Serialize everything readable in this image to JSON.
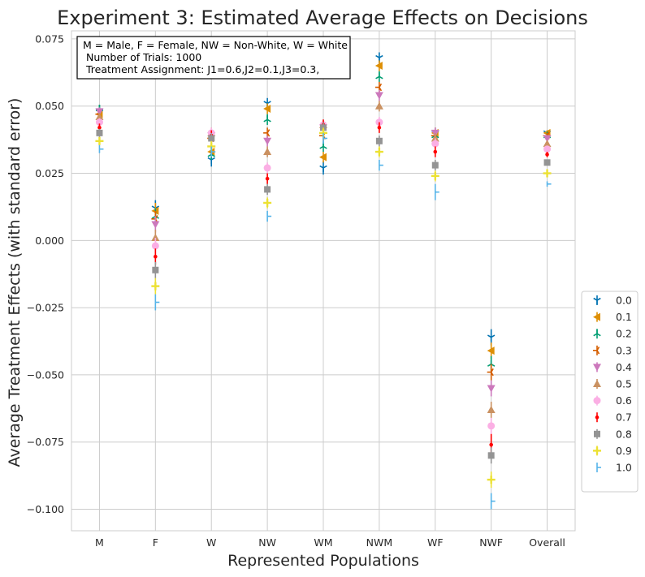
{
  "chart_data": {
    "type": "scatter",
    "title": "Experiment 3: Estimated Average Effects on Decisions",
    "xlabel": "Represented Populations",
    "ylabel": "Average Treatment Effects (with standard error)",
    "categories": [
      "M",
      "F",
      "W",
      "NW",
      "WM",
      "NWM",
      "WF",
      "NWF",
      "Overall"
    ],
    "ylim": [
      -0.108,
      0.078
    ],
    "yticks": [
      -0.1,
      -0.075,
      -0.05,
      -0.025,
      0.0,
      0.025,
      0.05,
      0.075
    ],
    "ytick_labels": [
      "−0.100",
      "−0.075",
      "−0.050",
      "−0.025",
      "0.000",
      "0.025",
      "0.050",
      "0.075"
    ],
    "grid": true,
    "annotation": [
      "M = Male, F = Female, NW = Non-White, W = White",
      " Number of Trials: 1000",
      " Treatment Assignment: J1=0.6,J2=0.1,J3=0.3,"
    ],
    "legend_position": "right-center",
    "series": [
      {
        "name": "0.0",
        "color": "#0173b2",
        "marker": "tri_down",
        "values": [
          0.048,
          0.012,
          0.03,
          0.051,
          0.027,
          0.068,
          0.04,
          -0.036,
          0.04
        ],
        "errors": [
          0.0015,
          0.003,
          0.0025,
          0.002,
          0.0025,
          0.002,
          0.002,
          0.003,
          0.001
        ]
      },
      {
        "name": "0.1",
        "color": "#de8f05",
        "marker": "triangle_left",
        "values": [
          0.047,
          0.011,
          0.033,
          0.049,
          0.031,
          0.065,
          0.04,
          -0.041,
          0.04
        ],
        "errors": [
          0.0015,
          0.003,
          0.002,
          0.002,
          0.002,
          0.002,
          0.002,
          0.003,
          0.001
        ]
      },
      {
        "name": "0.2",
        "color": "#029e73",
        "marker": "tri_up",
        "values": [
          0.049,
          0.009,
          0.032,
          0.045,
          0.035,
          0.061,
          0.039,
          -0.046,
          0.039
        ],
        "errors": [
          0.0015,
          0.003,
          0.002,
          0.002,
          0.002,
          0.002,
          0.002,
          0.003,
          0.001
        ]
      },
      {
        "name": "0.3",
        "color": "#d55e00",
        "marker": "tri_left",
        "values": [
          0.047,
          0.008,
          0.038,
          0.04,
          0.039,
          0.057,
          0.039,
          -0.049,
          0.039
        ],
        "errors": [
          0.0015,
          0.003,
          0.002,
          0.002,
          0.002,
          0.002,
          0.002,
          0.003,
          0.001
        ]
      },
      {
        "name": "0.4",
        "color": "#cc78bc",
        "marker": "triangle_down",
        "values": [
          0.048,
          0.006,
          0.039,
          0.037,
          0.042,
          0.054,
          0.04,
          -0.055,
          0.038
        ],
        "errors": [
          0.0015,
          0.003,
          0.002,
          0.002,
          0.002,
          0.002,
          0.002,
          0.003,
          0.001
        ]
      },
      {
        "name": "0.5",
        "color": "#ca9161",
        "marker": "triangle_up",
        "values": [
          0.046,
          0.001,
          0.04,
          0.033,
          0.043,
          0.05,
          0.038,
          -0.063,
          0.036
        ],
        "errors": [
          0.0015,
          0.003,
          0.002,
          0.002,
          0.002,
          0.002,
          0.002,
          0.003,
          0.001
        ]
      },
      {
        "name": "0.6",
        "color": "#fbafe4",
        "marker": "circle",
        "values": [
          0.044,
          -0.002,
          0.04,
          0.027,
          0.043,
          0.044,
          0.036,
          -0.069,
          0.034
        ],
        "errors": [
          0.0015,
          0.003,
          0.002,
          0.002,
          0.002,
          0.002,
          0.002,
          0.003,
          0.001
        ]
      },
      {
        "name": "0.7",
        "color": "#ff0000",
        "marker": "point",
        "values": [
          0.042,
          -0.006,
          0.039,
          0.023,
          0.043,
          0.042,
          0.033,
          -0.076,
          0.032
        ],
        "errors": [
          0.0015,
          0.003,
          0.002,
          0.002,
          0.002,
          0.002,
          0.002,
          0.004,
          0.001
        ]
      },
      {
        "name": "0.8",
        "color": "#949494",
        "marker": "square",
        "values": [
          0.04,
          -0.011,
          0.038,
          0.019,
          0.042,
          0.037,
          0.028,
          -0.08,
          0.029
        ],
        "errors": [
          0.0015,
          0.003,
          0.002,
          0.002,
          0.002,
          0.002,
          0.002,
          0.003,
          0.001
        ]
      },
      {
        "name": "0.9",
        "color": "#ece133",
        "marker": "plus",
        "values": [
          0.037,
          -0.017,
          0.035,
          0.014,
          0.04,
          0.033,
          0.024,
          -0.089,
          0.025
        ],
        "errors": [
          0.0015,
          0.003,
          0.002,
          0.002,
          0.002,
          0.002,
          0.002,
          0.003,
          0.001
        ]
      },
      {
        "name": "1.0",
        "color": "#56b4e9",
        "marker": "tickright",
        "values": [
          0.034,
          -0.023,
          0.033,
          0.009,
          0.038,
          0.028,
          0.018,
          -0.097,
          0.021
        ],
        "errors": [
          0.0015,
          0.003,
          0.002,
          0.002,
          0.002,
          0.002,
          0.003,
          0.003,
          0.001
        ]
      }
    ]
  }
}
